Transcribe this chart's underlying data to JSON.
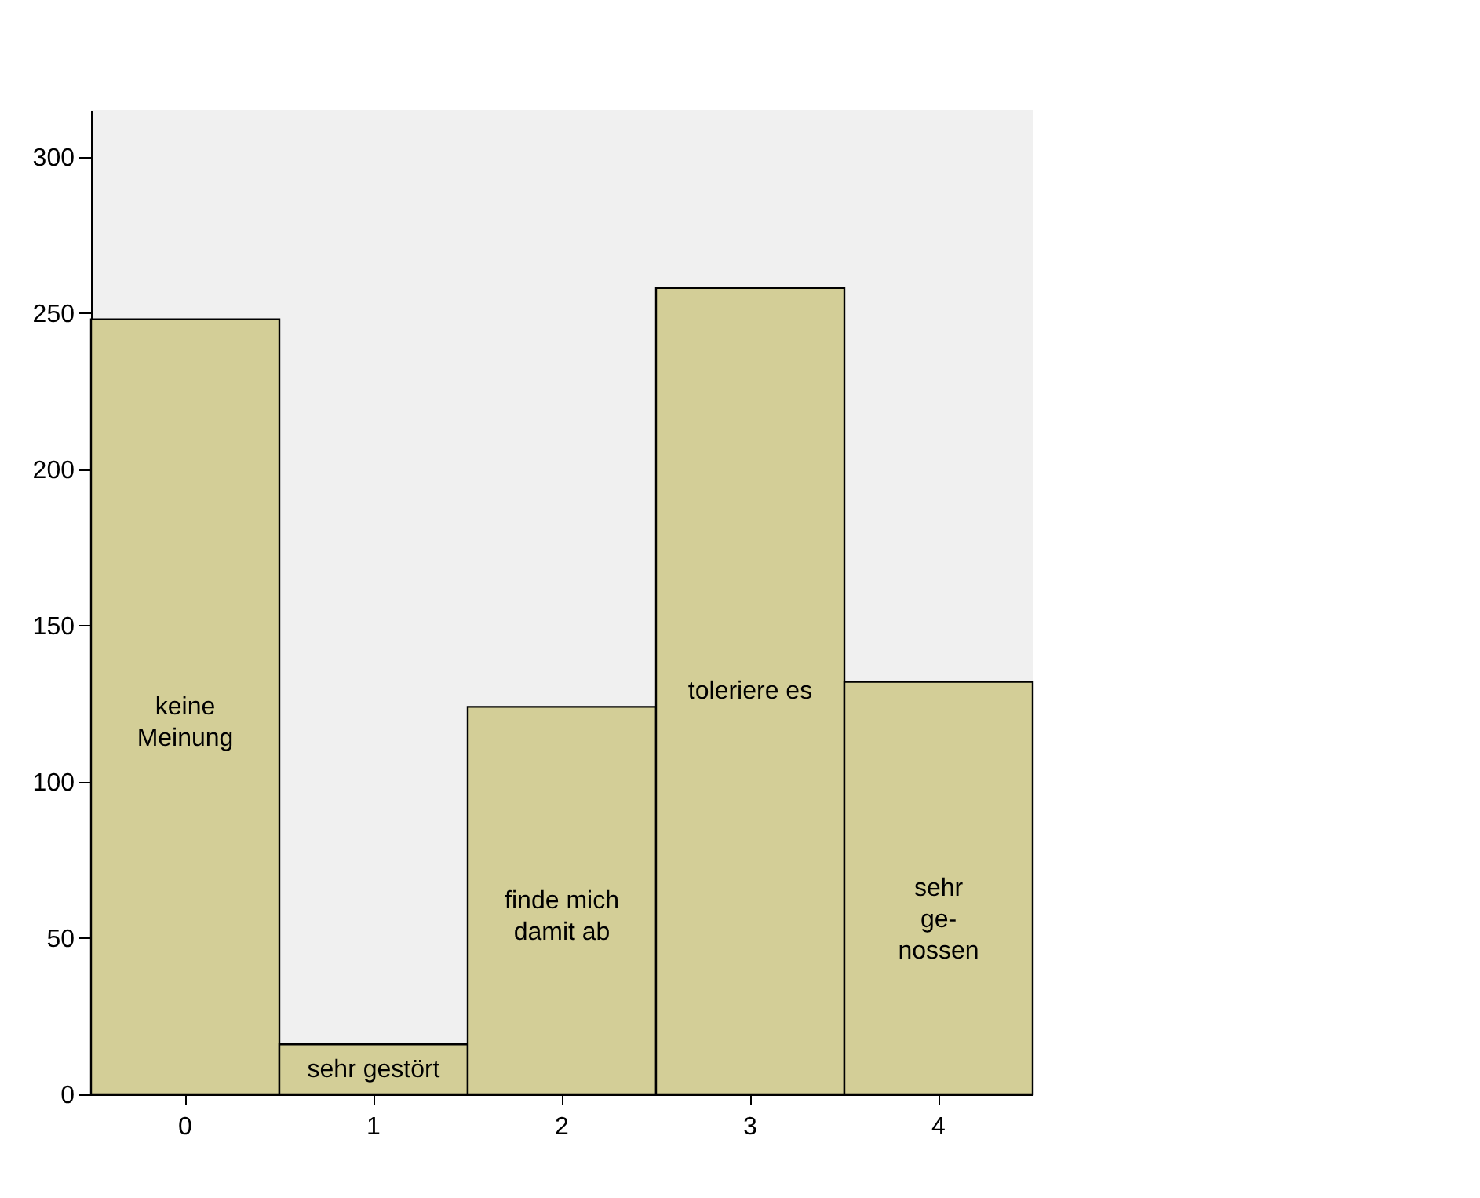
{
  "chart_data": {
    "type": "bar",
    "categories": [
      "0",
      "1",
      "2",
      "3",
      "4"
    ],
    "values": [
      248,
      16,
      124,
      258,
      132
    ],
    "color": "#d3ce97",
    "ylim": [
      0,
      315
    ],
    "yticks": [
      0,
      50,
      100,
      150,
      200,
      250,
      300
    ],
    "annotations": [
      "keine\nMeinung",
      "sehr gestört",
      "finde mich\ndamit ab",
      "toleriere es",
      "sehr\nge-\nnossen"
    ]
  }
}
